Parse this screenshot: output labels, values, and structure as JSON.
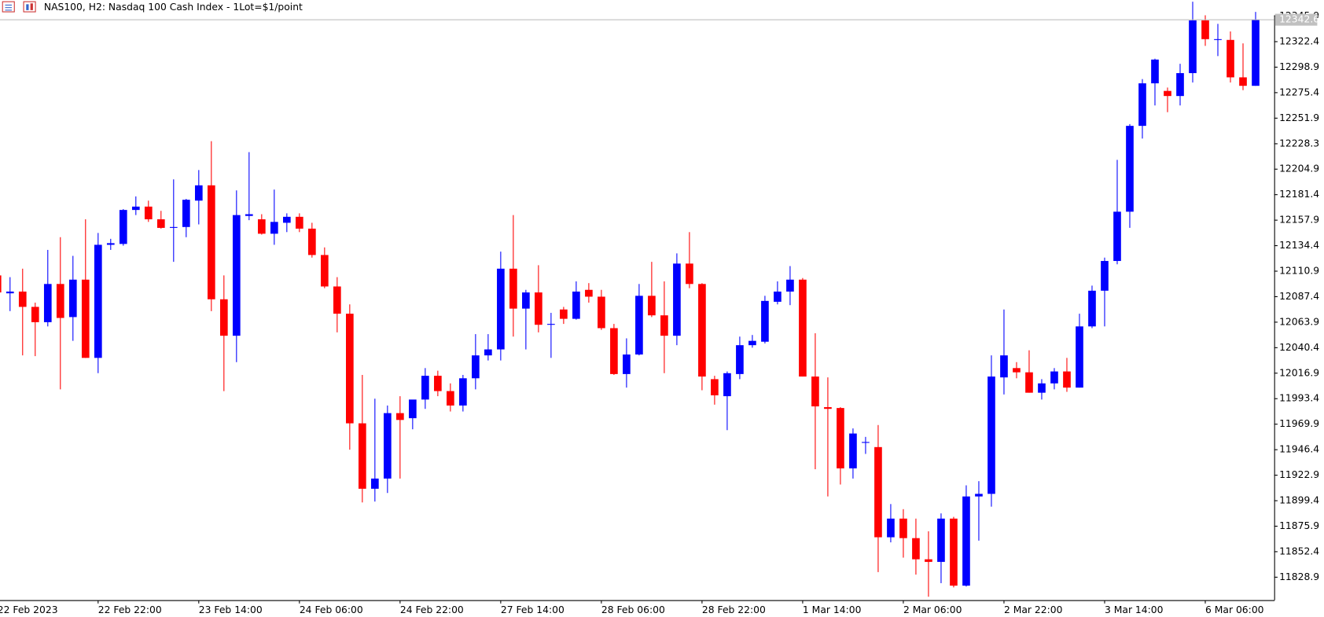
{
  "chart_data": {
    "type": "candlestick",
    "title": "NAS100, H2:  Nasdaq 100 Cash Index - 1Lot=$1/point",
    "categories": [
      "22 Feb 2023",
      null,
      null,
      null,
      null,
      null,
      null,
      null,
      "22 Feb 22:00",
      null,
      null,
      null,
      null,
      null,
      null,
      null,
      "23 Feb 14:00",
      null,
      null,
      null,
      null,
      null,
      null,
      null,
      "24 Feb 06:00",
      null,
      null,
      null,
      null,
      null,
      null,
      null,
      "24 Feb 22:00",
      null,
      null,
      null,
      null,
      null,
      null,
      null,
      "27 Feb 14:00",
      null,
      null,
      null,
      null,
      null,
      null,
      null,
      "28 Feb 06:00",
      null,
      null,
      null,
      null,
      null,
      null,
      null,
      "28 Feb 22:00",
      null,
      null,
      null,
      null,
      null,
      null,
      null,
      "1 Mar 14:00",
      null,
      null,
      null,
      null,
      null,
      null,
      null,
      "2 Mar 06:00",
      null,
      null,
      null,
      null,
      null,
      null,
      null,
      "2 Mar 22:00",
      null,
      null,
      null,
      null,
      null,
      null,
      null,
      "3 Mar 14:00",
      null,
      null,
      null,
      null,
      null,
      null,
      null,
      "6 Mar 06:00",
      null,
      null,
      null,
      null
    ],
    "open": [
      12107.0,
      12090.5,
      12092.1,
      12078.0,
      12063.9,
      12099.1,
      12068.6,
      12103.1,
      12031.0,
      12135.2,
      12136.0,
      12167.3,
      12170.4,
      12158.7,
      12150.8,
      12151.6,
      12175.9,
      12190.0,
      12085.0,
      12051.4,
      12161.8,
      12158.7,
      12145.4,
      12155.5,
      12161.0,
      12150.1,
      12125.8,
      12096.8,
      12071.7,
      11970.7,
      11910.4,
      11919.8,
      11980.1,
      11975.4,
      11992.6,
      12014.5,
      12000.4,
      11987.1,
      12012.2,
      12033.3,
      12038.8,
      12113.2,
      12076.4,
      12091.3,
      12061.5,
      12075.6,
      12067.0,
      12093.7,
      12087.4,
      12058.4,
      12016.1,
      12034.1,
      12088.2,
      12070.2,
      12051.4,
      12117.9,
      12099.1,
      12011.4,
      11995.7,
      12016.1,
      12042.7,
      12045.9,
      12082.7,
      12092.1,
      12103.1,
      12013.8,
      11985.6,
      11984.8,
      11929.2,
      11952.7,
      11948.8,
      11865.7,
      11882.9,
      11864.9,
      11845.4,
      11843.0,
      11882.9,
      11821.1,
      11903.3,
      11905.7,
      12013.0,
      12021.6,
      12017.7,
      11998.9,
      12007.5,
      12018.5,
      12003.6,
      12060.0,
      12092.9,
      12120.3,
      12165.7,
      12244.8,
      12284.0,
      12277.0,
      12272.3,
      12293.4,
      12342.0,
      12324.0,
      12324.0,
      12289.5,
      12281.7
    ],
    "high": [
      12113.2,
      12105.4,
      12113.2,
      12081.9,
      12130.5,
      12142.2,
      12125.0,
      12158.7,
      12146.1,
      12140.7,
      12168.1,
      12179.8,
      12175.9,
      12166.5,
      12195.5,
      12177.5,
      12204.1,
      12230.7,
      12107.0,
      12185.3,
      12220.6,
      12163.4,
      12186.1,
      12164.2,
      12164.2,
      12155.5,
      12132.8,
      12105.4,
      12080.3,
      12015.3,
      11993.4,
      11987.1,
      11995.7,
      11989.5,
      12021.6,
      12019.2,
      12007.5,
      12015.3,
      12052.9,
      12052.9,
      12128.9,
      12162.6,
      12093.7,
      12116.4,
      12072.5,
      12078.0,
      12101.5,
      12099.9,
      12093.7,
      12062.3,
      12049.0,
      12099.1,
      12119.5,
      12101.5,
      12127.3,
      12146.9,
      12099.9,
      12014.5,
      12018.5,
      12050.6,
      12052.1,
      12088.2,
      12101.5,
      12115.6,
      12104.6,
      12053.7,
      12013.0,
      11985.6,
      11966.0,
      11958.2,
      11969.1,
      11896.3,
      11891.6,
      11882.9,
      11871.2,
      11887.7,
      11884.5,
      11913.5,
      11917.4,
      12033.3,
      12075.6,
      12027.1,
      12038.0,
      12011.4,
      12021.6,
      12031.0,
      12071.7,
      12097.6,
      12123.4,
      12213.5,
      12246.4,
      12287.9,
      12306.7,
      12280.1,
      12302.0,
      12359.2,
      12346.7,
      12338.8,
      12331.8,
      12320.8,
      12349.8
    ],
    "low": [
      12088.2,
      12074.1,
      12033.3,
      12032.6,
      12060.0,
      12002.0,
      12046.7,
      12031.0,
      12016.9,
      12130.5,
      12134.4,
      12162.6,
      12156.3,
      12150.1,
      12119.5,
      12142.2,
      12154.0,
      12074.1,
      12000.4,
      12027.1,
      12157.9,
      12144.6,
      12135.2,
      12146.9,
      12146.9,
      12123.4,
      12095.2,
      12054.5,
      11946.4,
      11897.8,
      11898.6,
      11906.5,
      11919.8,
      11965.2,
      11984.0,
      11995.7,
      11981.6,
      11981.6,
      12002.0,
      12028.6,
      12028.6,
      12050.6,
      12038.8,
      12054.5,
      12031.0,
      12062.3,
      12066.2,
      12081.9,
      12056.8,
      12015.3,
      12003.6,
      12033.3,
      12068.6,
      12016.9,
      12042.7,
      12095.2,
      12001.2,
      11987.9,
      11964.4,
      12011.4,
      12040.4,
      12044.3,
      12080.3,
      12079.6,
      12013.8,
      11928.4,
      11903.3,
      11914.3,
      11919.8,
      11942.5,
      11833.6,
      11861.0,
      11846.9,
      11831.3,
      11810.9,
      11823.4,
      11819.5,
      11820.3,
      11862.6,
      11893.9,
      11997.3,
      12012.2,
      11998.9,
      11992.6,
      12002.0,
      11999.7,
      12003.6,
      12058.4,
      12060.0,
      12117.2,
      12150.8,
      12233.1,
      12263.6,
      12257.4,
      12263.6,
      12284.8,
      12318.5,
      12309.1,
      12284.8,
      12277.7,
      12281.7
    ],
    "close": [
      12091.3,
      12092.1,
      12078.0,
      12063.9,
      12099.1,
      12067.8,
      12103.1,
      12031.0,
      12135.2,
      12136.7,
      12167.3,
      12170.4,
      12158.7,
      12150.8,
      12151.6,
      12176.7,
      12190.0,
      12085.0,
      12051.4,
      12162.6,
      12163.4,
      12145.4,
      12156.3,
      12161.0,
      12150.1,
      12125.8,
      12096.8,
      12071.7,
      11970.7,
      11910.4,
      11919.8,
      11980.1,
      11973.8,
      11992.6,
      12014.5,
      12000.4,
      11987.1,
      12012.2,
      12033.3,
      12038.8,
      12113.2,
      12076.4,
      12091.3,
      12061.5,
      12062.3,
      12067.0,
      12092.1,
      12087.4,
      12058.4,
      12016.1,
      12034.1,
      12088.2,
      12070.2,
      12051.4,
      12117.9,
      12099.1,
      12013.8,
      11996.5,
      12016.9,
      12042.7,
      12046.7,
      12083.5,
      12092.1,
      12103.1,
      12013.8,
      11986.3,
      11984.0,
      11929.2,
      11961.3,
      11953.5,
      11865.7,
      11882.9,
      11864.9,
      11845.4,
      11843.0,
      11882.9,
      11821.1,
      11903.3,
      11905.7,
      12013.8,
      12033.3,
      12017.7,
      11998.9,
      12007.5,
      12018.5,
      12003.6,
      12060.0,
      12092.9,
      12120.3,
      12165.7,
      12244.8,
      12284.0,
      12305.9,
      12272.3,
      12293.4,
      12342.0,
      12324.7,
      12324.7,
      12289.5,
      12281.7,
      12342.6
    ],
    "up_color": "#0000ff",
    "down_color": "#ff0000",
    "last_price": 12342.6,
    "ylim": [
      11807.8,
      12349.8
    ],
    "yticks": [
      12345.9,
      12322.4,
      12298.9,
      12275.4,
      12251.9,
      12228.3,
      12204.9,
      12181.4,
      12157.9,
      12134.4,
      12110.9,
      12087.4,
      12063.9,
      12040.4,
      12016.9,
      11993.4,
      11969.9,
      11946.4,
      11922.9,
      11899.4,
      11875.9,
      11852.4,
      11828.9
    ],
    "grid": false
  }
}
